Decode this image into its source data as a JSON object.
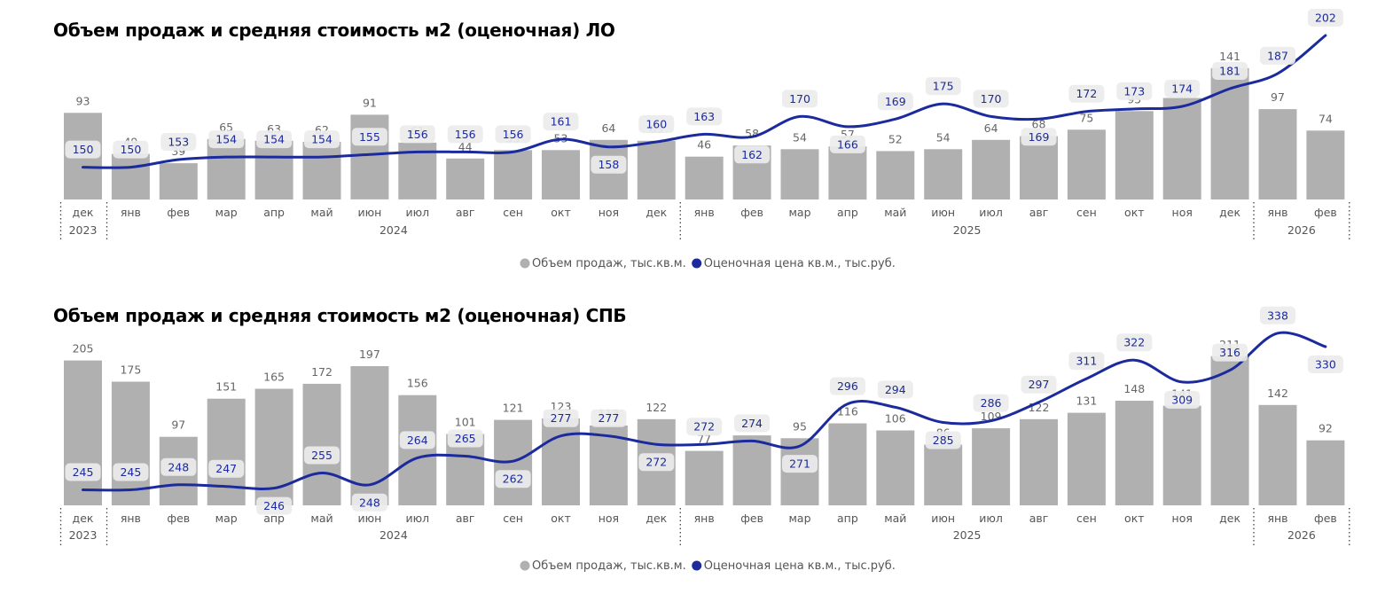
{
  "chart_data": [
    {
      "type": "bar",
      "title": "Объем продаж и средняя стоимость м2 (оценочная) ЛО",
      "categories": [
        "дек",
        "янв",
        "фев",
        "мар",
        "апр",
        "май",
        "июн",
        "июл",
        "авг",
        "сен",
        "окт",
        "ноя",
        "дек",
        "янв",
        "фев",
        "мар",
        "апр",
        "май",
        "июн",
        "июл",
        "авг",
        "сен",
        "окт",
        "ноя",
        "дек",
        "янв",
        "фев"
      ],
      "year_groups": [
        {
          "label": "2023",
          "start": 0,
          "end": 0
        },
        {
          "label": "2024",
          "start": 1,
          "end": 12
        },
        {
          "label": "2025",
          "start": 13,
          "end": 24
        },
        {
          "label": "2026",
          "start": 25,
          "end": 26
        }
      ],
      "series": [
        {
          "name": "Объем продаж, тыс.кв.м.",
          "kind": "bar",
          "color": "#b0b0b0",
          "values": [
            93,
            49,
            39,
            65,
            63,
            62,
            91,
            61,
            44,
            53,
            53,
            64,
            63,
            46,
            58,
            54,
            57,
            52,
            54,
            64,
            68,
            75,
            95,
            109,
            141,
            97,
            74
          ]
        },
        {
          "name": "Оценочная цена кв.м., тыс.руб.",
          "kind": "line",
          "color": "#1b2a9c",
          "values": [
            150,
            150,
            153,
            154,
            154,
            154,
            155,
            156,
            156,
            156,
            161,
            158,
            160,
            163,
            162,
            170,
            166,
            169,
            175,
            170,
            169,
            172,
            173,
            174,
            181,
            187,
            202
          ]
        }
      ],
      "legend_position": "bottom-center"
    },
    {
      "type": "bar",
      "title": "Объем продаж и средняя стоимость м2 (оценочная) СПБ",
      "categories": [
        "дек",
        "янв",
        "фев",
        "мар",
        "апр",
        "май",
        "июн",
        "июл",
        "авг",
        "сен",
        "окт",
        "ноя",
        "дек",
        "янв",
        "фев",
        "мар",
        "апр",
        "май",
        "июн",
        "июл",
        "авг",
        "сен",
        "окт",
        "ноя",
        "дек",
        "янв",
        "фев"
      ],
      "year_groups": [
        {
          "label": "2023",
          "start": 0,
          "end": 0
        },
        {
          "label": "2024",
          "start": 1,
          "end": 12
        },
        {
          "label": "2025",
          "start": 13,
          "end": 24
        },
        {
          "label": "2026",
          "start": 25,
          "end": 26
        }
      ],
      "series": [
        {
          "name": "Объем продаж, тыс.кв.м.",
          "kind": "bar",
          "color": "#b0b0b0",
          "values": [
            205,
            175,
            97,
            151,
            165,
            172,
            197,
            156,
            101,
            121,
            123,
            113,
            122,
            77,
            99,
            95,
            116,
            106,
            86,
            109,
            122,
            131,
            148,
            141,
            211,
            142,
            92
          ]
        },
        {
          "name": "Оценочная цена кв.м., тыс.руб.",
          "kind": "line",
          "color": "#1b2a9c",
          "values": [
            245,
            245,
            248,
            247,
            246,
            255,
            248,
            264,
            265,
            262,
            277,
            277,
            272,
            272,
            274,
            271,
            296,
            294,
            285,
            286,
            297,
            311,
            322,
            309,
            316,
            338,
            330
          ]
        }
      ],
      "legend_position": "bottom-center"
    }
  ]
}
